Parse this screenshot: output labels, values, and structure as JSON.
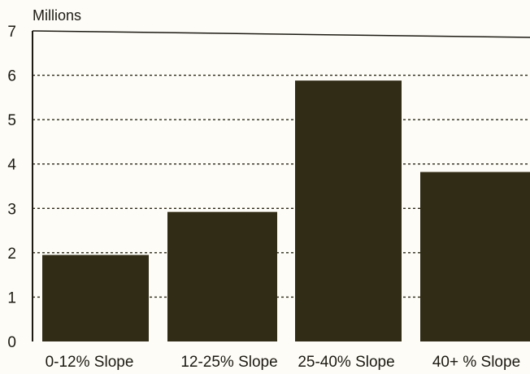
{
  "chart_data": {
    "type": "bar",
    "unit_label": "Millions",
    "categories": [
      "0-12% Slope",
      "12-25% Slope",
      "25-40% Slope",
      "40+ % Slope"
    ],
    "values": [
      1.95,
      2.92,
      5.88,
      3.82
    ],
    "ylim": [
      0,
      7
    ],
    "yticks": [
      "0",
      "1",
      "2",
      "3",
      "4",
      "5",
      "6",
      "7"
    ],
    "grid": true,
    "grid_style": "dotted",
    "legend": "none",
    "colors": {
      "bar": "#312c16",
      "grid": "#2a2716",
      "axis": "#1c1a12",
      "background": "#fdfcf7"
    }
  }
}
